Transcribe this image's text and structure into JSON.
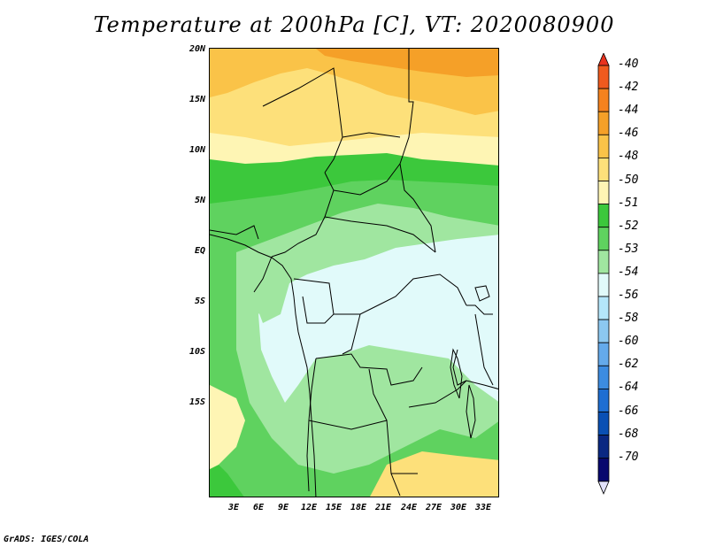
{
  "title": "Temperature at 200hPa [C], VT: 2020080900",
  "credit": "GrADS: IGES/COLA",
  "map": {
    "lat_labels": [
      "20N",
      "15N",
      "10N",
      "5N",
      "EQ",
      "5S",
      "10S",
      "15S"
    ],
    "lon_labels": [
      "3E",
      "6E",
      "9E",
      "12E",
      "15E",
      "18E",
      "21E",
      "24E",
      "27E",
      "30E",
      "33E"
    ]
  },
  "colorbar": {
    "labels": [
      "-40",
      "-42",
      "-44",
      "-46",
      "-48",
      "-50",
      "-51",
      "-52",
      "-53",
      "-54",
      "-56",
      "-58",
      "-60",
      "-62",
      "-64",
      "-66",
      "-68",
      "-70"
    ],
    "colors": [
      "#e8321e",
      "#f05a1e",
      "#f5821e",
      "#f5a028",
      "#fac348",
      "#fde07a",
      "#fef5b4",
      "#3cc83c",
      "#5fd25f",
      "#a0e6a0",
      "#e1fafa",
      "#b4e6fa",
      "#8cc8f0",
      "#64aaeb",
      "#3c8ce1",
      "#1e6ed2",
      "#0a50b4",
      "#0a2882",
      "#08086e",
      "#e1e1fa"
    ]
  }
}
